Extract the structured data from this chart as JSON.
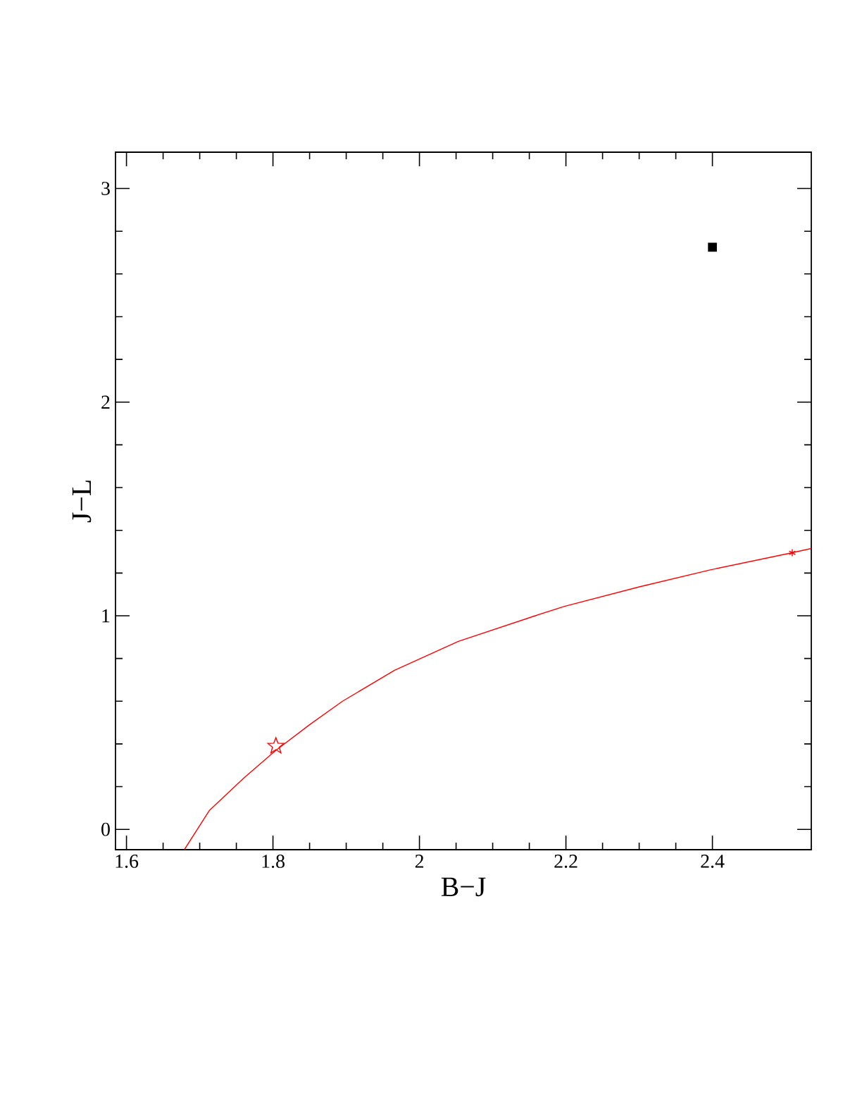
{
  "chart_data": {
    "type": "line",
    "xlabel": "B−J",
    "ylabel": "J−L",
    "xlim": [
      1.585,
      2.535
    ],
    "ylim": [
      -0.095,
      3.17
    ],
    "xticks": [
      1.6,
      1.8,
      2,
      2.2,
      2.4
    ],
    "yticks": [
      0,
      1,
      2,
      3
    ],
    "series": [
      {
        "color": "#ff0000",
        "marker": "none",
        "x": [
          1.679,
          1.713,
          1.76,
          1.804,
          1.85,
          1.895,
          1.966,
          2.053,
          2.158,
          2.198,
          2.3,
          2.396,
          2.509,
          2.535
        ],
        "values": [
          -0.095,
          0.088,
          0.24,
          0.37,
          0.49,
          0.6,
          0.745,
          0.88,
          1.0,
          1.044,
          1.135,
          1.214,
          1.295,
          1.315
        ]
      },
      {
        "type": "scatter",
        "color": "#ff0000",
        "marker": "star",
        "x": [
          1.804
        ],
        "values": [
          0.39
        ]
      },
      {
        "type": "scatter",
        "color": "#ff0000",
        "marker": "cross",
        "x": [
          2.509
        ],
        "values": [
          1.295
        ]
      },
      {
        "type": "scatter",
        "color": "#000000",
        "marker": "square",
        "x": [
          2.4
        ],
        "values": [
          2.725
        ]
      }
    ]
  }
}
